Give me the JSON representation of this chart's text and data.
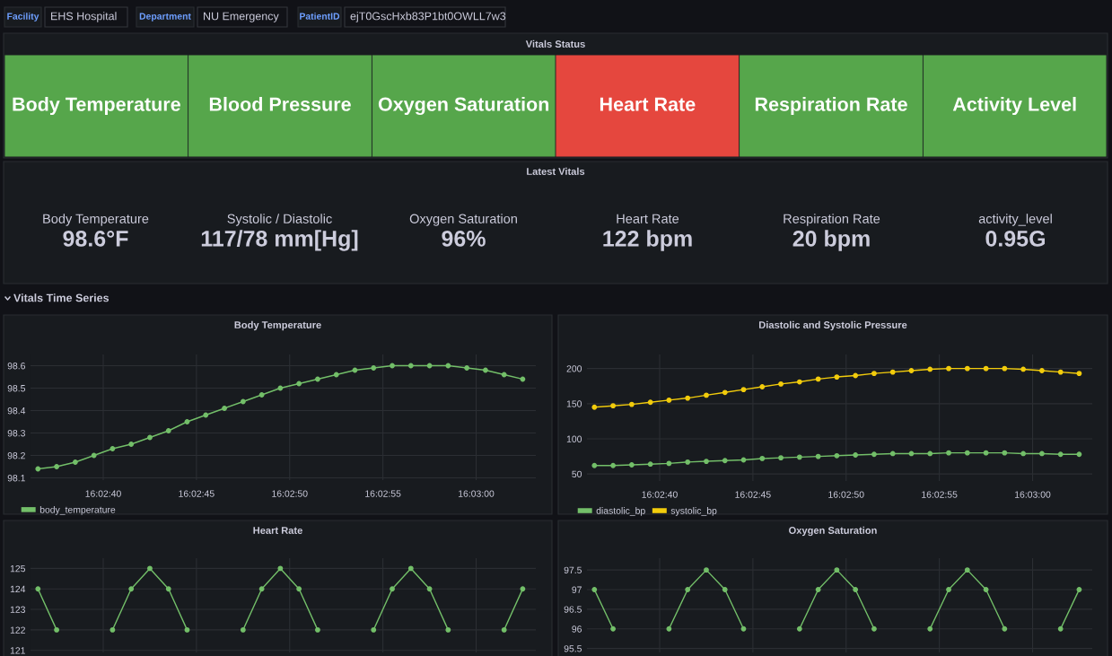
{
  "chart_data": [
    {
      "type": "other",
      "annotations": [
        "Facility",
        "EHS Hospital",
        "Department",
        "NU Emergency",
        "PatientID",
        "ejT0GscHxb83P1bt0OWLL7w3"
      ]
    },
    {
      "type": "other",
      "title": "Vitals Status",
      "categories": [
        "Body Temperature",
        "Blood Pressure",
        "Oxygen Saturation",
        "Heart Rate",
        "Respiration Rate",
        "Activity Level"
      ],
      "colors": [
        "#56a64b",
        "#56a64b",
        "#56a64b",
        "#e5473e",
        "#56a64b",
        "#56a64b"
      ]
    },
    {
      "type": "other",
      "title": "Latest Vitals",
      "categories": [
        "Body Temperature",
        "Systolic / Diastolic",
        "Oxygen Saturation",
        "Heart Rate",
        "Respiration Rate",
        "activity_level"
      ],
      "value_labels": [
        "98.6°F",
        "117/78 mm[Hg]",
        "96%",
        "122 bpm",
        "20 bpm",
        "0.95G"
      ]
    },
    {
      "type": "other",
      "title": "Vitals Time Series"
    },
    {
      "type": "line",
      "title": "Body Temperature",
      "x": [
        16.043472,
        16.04375,
        16.044028,
        16.044306,
        16.044583,
        16.044861,
        16.045139,
        16.045417,
        16.045694,
        16.045972,
        16.04625,
        16.046528,
        16.046806,
        16.047083,
        16.047361,
        16.047639,
        16.047917,
        16.048194,
        16.048472,
        16.04875,
        16.049028,
        16.049306,
        16.049583,
        16.049861,
        16.050139,
        16.050417,
        16.050694
      ],
      "series": [
        {
          "name": "body_temperature",
          "color": "#73bf69",
          "values": [
            98.14,
            98.15,
            98.17,
            98.2,
            98.23,
            98.25,
            98.28,
            98.31,
            98.35,
            98.38,
            98.41,
            98.44,
            98.47,
            98.5,
            98.52,
            98.54,
            98.56,
            98.58,
            98.59,
            98.6,
            98.6,
            98.6,
            98.6,
            98.59,
            98.58,
            98.56,
            98.54
          ]
        }
      ],
      "xlim": [
        16.043361,
        16.050889
      ],
      "xticks": [
        {
          "value": 16.044444,
          "label": "16:02:40"
        },
        {
          "value": 16.045833,
          "label": "16:02:45"
        },
        {
          "value": 16.047222,
          "label": "16:02:50"
        },
        {
          "value": 16.048611,
          "label": "16:02:55"
        },
        {
          "value": 16.05,
          "label": "16:03:00"
        }
      ],
      "ylim": [
        98.09,
        98.65
      ],
      "yticks": [
        98.1,
        98.2,
        98.3,
        98.4,
        98.5,
        98.6
      ],
      "grid": true,
      "legend": "bottom left",
      "marker": "circle"
    },
    {
      "type": "line",
      "title": "Diastolic and Systolic Pressure",
      "x": [
        16.043472,
        16.04375,
        16.044028,
        16.044306,
        16.044583,
        16.044861,
        16.045139,
        16.045417,
        16.045694,
        16.045972,
        16.04625,
        16.046528,
        16.046806,
        16.047083,
        16.047361,
        16.047639,
        16.047917,
        16.048194,
        16.048472,
        16.04875,
        16.049028,
        16.049306,
        16.049583,
        16.049861,
        16.050139,
        16.050417,
        16.050694
      ],
      "series": [
        {
          "name": "diastolic_bp",
          "color": "#73bf69",
          "values": [
            62,
            62,
            63,
            64,
            65,
            67,
            68,
            69,
            70,
            72,
            73,
            74,
            75,
            76,
            77,
            78,
            79,
            79,
            79,
            80,
            80,
            80,
            80,
            79,
            79,
            78,
            78
          ]
        },
        {
          "name": "systolic_bp",
          "color": "#f2cc0c",
          "values": [
            145,
            147,
            149,
            152,
            155,
            158,
            162,
            166,
            170,
            174,
            178,
            181,
            185,
            188,
            190,
            193,
            195,
            197,
            199,
            200,
            200,
            200,
            200,
            199,
            197,
            195,
            193
          ]
        }
      ],
      "xlim": [
        16.043361,
        16.050889
      ],
      "xticks": [
        {
          "value": 16.044444,
          "label": "16:02:40"
        },
        {
          "value": 16.045833,
          "label": "16:02:45"
        },
        {
          "value": 16.047222,
          "label": "16:02:50"
        },
        {
          "value": 16.048611,
          "label": "16:02:55"
        },
        {
          "value": 16.05,
          "label": "16:03:00"
        }
      ],
      "ylim": [
        40,
        220
      ],
      "yticks": [
        50,
        100,
        150,
        200
      ],
      "grid": true,
      "legend": "bottom left",
      "marker": "circle"
    },
    {
      "type": "line",
      "title": "Heart Rate",
      "x": [
        16.043472,
        16.04375,
        16.044028,
        16.044306,
        16.044583,
        16.044861,
        16.045139,
        16.045417,
        16.045694,
        16.045972,
        16.04625,
        16.046528,
        16.046806,
        16.047083,
        16.047361,
        16.047639,
        16.047917,
        16.048194,
        16.048472,
        16.04875,
        16.049028,
        16.049306,
        16.049583,
        16.049861,
        16.050139,
        16.050417,
        16.050694
      ],
      "series": [
        {
          "color": "#73bf69",
          "values": [
            124,
            122,
            null,
            null,
            122,
            124,
            125,
            124,
            122,
            null,
            null,
            122,
            124,
            125,
            124,
            122,
            null,
            null,
            122,
            124,
            125,
            124,
            122,
            null,
            null,
            122,
            124
          ]
        }
      ],
      "xlim": [
        16.043361,
        16.050889
      ],
      "xticks": [
        {
          "value": 16.044444,
          "label": null
        },
        {
          "value": 16.045833,
          "label": null
        },
        {
          "value": 16.047222,
          "label": null
        },
        {
          "value": 16.048611,
          "label": null
        },
        {
          "value": 16.05,
          "label": null
        }
      ],
      "ylim": [
        120.9,
        125.5
      ],
      "yticks": [
        121,
        122,
        123,
        124,
        125
      ],
      "grid": true,
      "marker": "circle",
      "tick_labels": "y"
    },
    {
      "type": "line",
      "title": "Oxygen Saturation",
      "x": [
        16.043472,
        16.04375,
        16.044028,
        16.044306,
        16.044583,
        16.044861,
        16.045139,
        16.045417,
        16.045694,
        16.045972,
        16.04625,
        16.046528,
        16.046806,
        16.047083,
        16.047361,
        16.047639,
        16.047917,
        16.048194,
        16.048472,
        16.04875,
        16.049028,
        16.049306,
        16.049583,
        16.049861,
        16.050139,
        16.050417,
        16.050694
      ],
      "series": [
        {
          "color": "#73bf69",
          "values": [
            97,
            96,
            null,
            null,
            96,
            97,
            97.5,
            97,
            96,
            null,
            null,
            96,
            97,
            97.5,
            97,
            96,
            null,
            null,
            96,
            97,
            97.5,
            97,
            96,
            null,
            null,
            96,
            97
          ]
        }
      ],
      "xlim": [
        16.043361,
        16.050889
      ],
      "xticks": [
        {
          "value": 16.044444,
          "label": null
        },
        {
          "value": 16.045833,
          "label": null
        },
        {
          "value": 16.047222,
          "label": null
        },
        {
          "value": 16.048611,
          "label": null
        },
        {
          "value": 16.05,
          "label": null
        }
      ],
      "ylim": [
        95.4,
        97.8
      ],
      "yticks": [
        95.5,
        96,
        96.5,
        97,
        97.5
      ],
      "grid": true,
      "marker": "circle",
      "tick_labels": "y"
    }
  ]
}
